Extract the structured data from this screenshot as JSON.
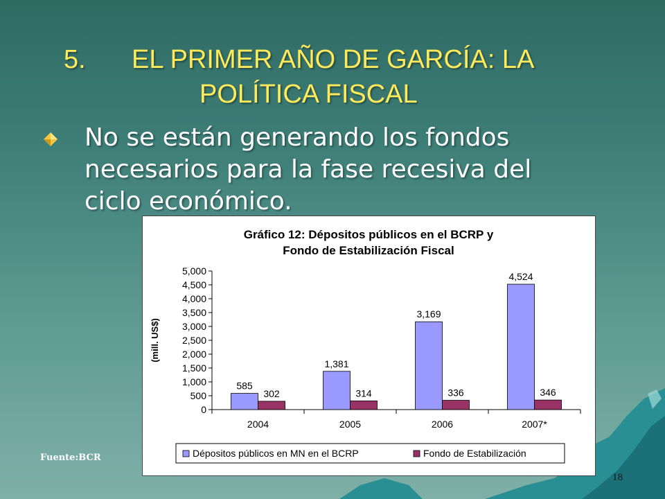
{
  "slide": {
    "title_number": "5.",
    "title_line1": "EL PRIMER AÑO DE GARCÍA: LA",
    "title_line2": "POLÍTICA FISCAL",
    "bullet_line1": "No se están generando los fondos",
    "bullet_line2": "necesarios para la fase recesiva del",
    "bullet_line3": "ciclo económico.",
    "source": "Fuente:BCR",
    "page_number": "18",
    "colors": {
      "title": "#ffea5a",
      "bullet_icon": "#f5c542",
      "text": "#ffffff"
    }
  },
  "chart_data": {
    "type": "bar",
    "title_line1": "Gráfico 12: Dépositos públicos en el BCRP y",
    "title_line2": "Fondo de Estabilización Fiscal",
    "ylabel": "(mill. US$)",
    "xlabel": "",
    "ylim": [
      0,
      5000
    ],
    "yticks": [
      0,
      500,
      1000,
      1500,
      2000,
      2500,
      3000,
      3500,
      4000,
      4500,
      5000
    ],
    "ytick_labels": [
      "0",
      "500",
      "1,000",
      "1,500",
      "2,000",
      "2,500",
      "3,000",
      "3,500",
      "4,000",
      "4,500",
      "5,000"
    ],
    "categories": [
      "2004",
      "2005",
      "2006",
      "2007*"
    ],
    "series": [
      {
        "name": "Dépositos públicos en MN en el BCRP",
        "values": [
          585,
          1381,
          3169,
          4524
        ],
        "labels": [
          "585",
          "1,381",
          "3,169",
          "4,524"
        ],
        "color": "#9999ff"
      },
      {
        "name": "Fondo de Estabilización",
        "values": [
          302,
          314,
          336,
          346
        ],
        "labels": [
          "302",
          "314",
          "336",
          "346"
        ],
        "color": "#993366"
      }
    ],
    "grid": false,
    "legend_position": "bottom"
  }
}
